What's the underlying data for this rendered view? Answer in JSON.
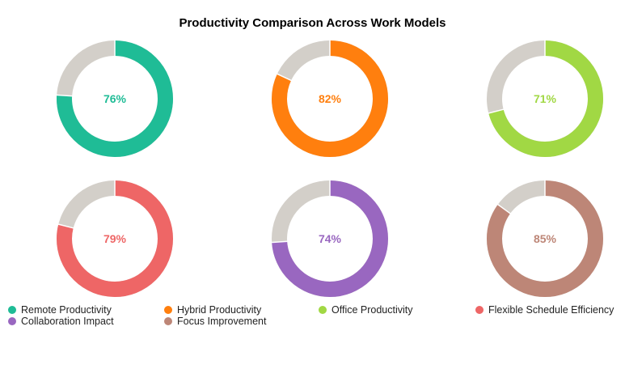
{
  "chart_data": {
    "type": "pie",
    "subtype": "donut-grid",
    "title": "Productivity Comparison Across Work Models",
    "remainder_color": "#d3cfc9",
    "series": [
      {
        "name": "Remote Productivity",
        "value": 76,
        "label": "76%",
        "color": "#1fbc96"
      },
      {
        "name": "Hybrid Productivity",
        "value": 82,
        "label": "82%",
        "color": "#ff7f0e"
      },
      {
        "name": "Office Productivity",
        "value": 71,
        "label": "71%",
        "color": "#a1d844"
      },
      {
        "name": "Flexible Schedule Efficiency",
        "value": 79,
        "label": "79%",
        "color": "#ee6666"
      },
      {
        "name": "Collaboration Impact",
        "value": 74,
        "label": "74%",
        "color": "#9967c0"
      },
      {
        "name": "Focus Improvement",
        "value": 85,
        "label": "85%",
        "color": "#bd8677"
      }
    ],
    "legend_position": "bottom"
  }
}
